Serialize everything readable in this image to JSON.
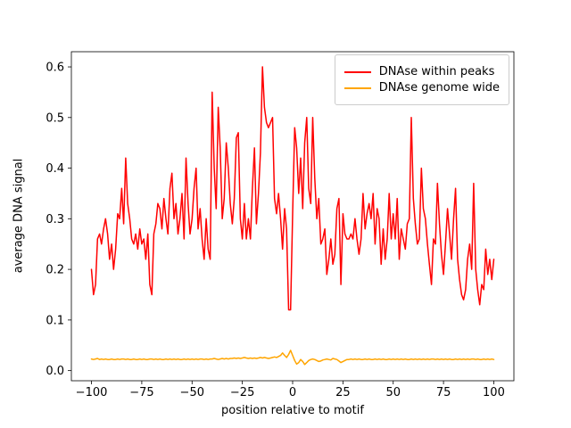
{
  "figure": {
    "background": "#ffffff"
  },
  "chart_data": {
    "type": "line",
    "title": "",
    "xlabel": "position relative to motif",
    "ylabel": "average DNA signal",
    "grid": false,
    "legend_position": "upper right",
    "xlim": [
      -110,
      110
    ],
    "ylim": [
      -0.02,
      0.63
    ],
    "x_ticks": [
      -100,
      -75,
      -50,
      -25,
      0,
      25,
      50,
      75,
      100
    ],
    "x_tick_labels": [
      "−100",
      "−75",
      "−50",
      "−25",
      "0",
      "25",
      "50",
      "75",
      "100"
    ],
    "y_ticks": [
      0.0,
      0.1,
      0.2,
      0.3,
      0.4,
      0.5,
      0.6
    ],
    "y_tick_labels": [
      "0.0",
      "0.1",
      "0.2",
      "0.3",
      "0.4",
      "0.5",
      "0.6"
    ],
    "x": [
      -100,
      -99,
      -98,
      -97,
      -96,
      -95,
      -94,
      -93,
      -92,
      -91,
      -90,
      -89,
      -88,
      -87,
      -86,
      -85,
      -84,
      -83,
      -82,
      -81,
      -80,
      -79,
      -78,
      -77,
      -76,
      -75,
      -74,
      -73,
      -72,
      -71,
      -70,
      -69,
      -68,
      -67,
      -66,
      -65,
      -64,
      -63,
      -62,
      -61,
      -60,
      -59,
      -58,
      -57,
      -56,
      -55,
      -54,
      -53,
      -52,
      -51,
      -50,
      -49,
      -48,
      -47,
      -46,
      -45,
      -44,
      -43,
      -42,
      -41,
      -40,
      -39,
      -38,
      -37,
      -36,
      -35,
      -34,
      -33,
      -32,
      -31,
      -30,
      -29,
      -28,
      -27,
      -26,
      -25,
      -24,
      -23,
      -22,
      -21,
      -20,
      -19,
      -18,
      -17,
      -16,
      -15,
      -14,
      -13,
      -12,
      -11,
      -10,
      -9,
      -8,
      -7,
      -6,
      -5,
      -4,
      -3,
      -2,
      -1,
      0,
      1,
      2,
      3,
      4,
      5,
      6,
      7,
      8,
      9,
      10,
      11,
      12,
      13,
      14,
      15,
      16,
      17,
      18,
      19,
      20,
      21,
      22,
      23,
      24,
      25,
      26,
      27,
      28,
      29,
      30,
      31,
      32,
      33,
      34,
      35,
      36,
      37,
      38,
      39,
      40,
      41,
      42,
      43,
      44,
      45,
      46,
      47,
      48,
      49,
      50,
      51,
      52,
      53,
      54,
      55,
      56,
      57,
      58,
      59,
      60,
      61,
      62,
      63,
      64,
      65,
      66,
      67,
      68,
      69,
      70,
      71,
      72,
      73,
      74,
      75,
      76,
      77,
      78,
      79,
      80,
      81,
      82,
      83,
      84,
      85,
      86,
      87,
      88,
      89,
      90,
      91,
      92,
      93,
      94,
      95,
      96,
      97,
      98,
      99,
      100
    ],
    "series": [
      {
        "name": "DNAse within peaks",
        "color": "#ff0000",
        "values": [
          0.2,
          0.15,
          0.17,
          0.26,
          0.27,
          0.25,
          0.28,
          0.3,
          0.27,
          0.22,
          0.25,
          0.2,
          0.24,
          0.31,
          0.3,
          0.36,
          0.29,
          0.42,
          0.33,
          0.3,
          0.26,
          0.25,
          0.27,
          0.24,
          0.28,
          0.25,
          0.26,
          0.22,
          0.27,
          0.17,
          0.15,
          0.27,
          0.29,
          0.33,
          0.32,
          0.28,
          0.34,
          0.3,
          0.27,
          0.36,
          0.39,
          0.3,
          0.33,
          0.27,
          0.3,
          0.35,
          0.26,
          0.42,
          0.33,
          0.27,
          0.3,
          0.36,
          0.4,
          0.28,
          0.32,
          0.26,
          0.22,
          0.3,
          0.24,
          0.22,
          0.55,
          0.4,
          0.32,
          0.52,
          0.44,
          0.3,
          0.34,
          0.45,
          0.4,
          0.33,
          0.29,
          0.34,
          0.46,
          0.47,
          0.3,
          0.26,
          0.33,
          0.26,
          0.3,
          0.26,
          0.36,
          0.44,
          0.29,
          0.35,
          0.43,
          0.6,
          0.52,
          0.49,
          0.48,
          0.49,
          0.5,
          0.34,
          0.31,
          0.35,
          0.3,
          0.24,
          0.32,
          0.28,
          0.12,
          0.12,
          0.31,
          0.48,
          0.44,
          0.35,
          0.42,
          0.32,
          0.45,
          0.5,
          0.36,
          0.33,
          0.5,
          0.38,
          0.3,
          0.34,
          0.25,
          0.26,
          0.28,
          0.19,
          0.22,
          0.26,
          0.21,
          0.23,
          0.32,
          0.34,
          0.17,
          0.31,
          0.27,
          0.26,
          0.26,
          0.27,
          0.26,
          0.3,
          0.26,
          0.23,
          0.26,
          0.35,
          0.28,
          0.31,
          0.33,
          0.3,
          0.35,
          0.25,
          0.32,
          0.3,
          0.21,
          0.28,
          0.22,
          0.26,
          0.35,
          0.26,
          0.31,
          0.26,
          0.34,
          0.22,
          0.28,
          0.26,
          0.24,
          0.29,
          0.3,
          0.5,
          0.34,
          0.29,
          0.25,
          0.26,
          0.4,
          0.32,
          0.3,
          0.25,
          0.21,
          0.17,
          0.26,
          0.25,
          0.37,
          0.29,
          0.23,
          0.19,
          0.25,
          0.32,
          0.27,
          0.22,
          0.3,
          0.36,
          0.22,
          0.18,
          0.15,
          0.14,
          0.16,
          0.22,
          0.25,
          0.2,
          0.37,
          0.2,
          0.16,
          0.13,
          0.17,
          0.16,
          0.24,
          0.19,
          0.22,
          0.18,
          0.22
        ]
      },
      {
        "name": "DNAse genome wide",
        "color": "#ffa500",
        "values": [
          0.023,
          0.022,
          0.023,
          0.024,
          0.022,
          0.023,
          0.022,
          0.023,
          0.022,
          0.022,
          0.023,
          0.022,
          0.022,
          0.023,
          0.022,
          0.023,
          0.023,
          0.022,
          0.023,
          0.022,
          0.022,
          0.023,
          0.022,
          0.022,
          0.023,
          0.022,
          0.023,
          0.022,
          0.022,
          0.023,
          0.023,
          0.022,
          0.023,
          0.022,
          0.023,
          0.022,
          0.022,
          0.023,
          0.022,
          0.023,
          0.022,
          0.023,
          0.022,
          0.023,
          0.022,
          0.022,
          0.023,
          0.022,
          0.023,
          0.022,
          0.023,
          0.022,
          0.023,
          0.022,
          0.023,
          0.023,
          0.022,
          0.023,
          0.022,
          0.023,
          0.023,
          0.024,
          0.023,
          0.022,
          0.023,
          0.024,
          0.023,
          0.024,
          0.023,
          0.024,
          0.024,
          0.025,
          0.024,
          0.025,
          0.024,
          0.025,
          0.026,
          0.025,
          0.024,
          0.025,
          0.024,
          0.025,
          0.024,
          0.025,
          0.026,
          0.025,
          0.026,
          0.025,
          0.024,
          0.025,
          0.026,
          0.027,
          0.026,
          0.028,
          0.03,
          0.035,
          0.03,
          0.026,
          0.032,
          0.04,
          0.03,
          0.02,
          0.013,
          0.016,
          0.022,
          0.018,
          0.012,
          0.016,
          0.02,
          0.022,
          0.023,
          0.022,
          0.02,
          0.018,
          0.019,
          0.021,
          0.022,
          0.023,
          0.022,
          0.021,
          0.024,
          0.023,
          0.022,
          0.019,
          0.016,
          0.018,
          0.02,
          0.022,
          0.022,
          0.023,
          0.022,
          0.023,
          0.022,
          0.023,
          0.022,
          0.022,
          0.023,
          0.022,
          0.023,
          0.022,
          0.022,
          0.023,
          0.022,
          0.023,
          0.022,
          0.023,
          0.022,
          0.022,
          0.023,
          0.022,
          0.023,
          0.022,
          0.023,
          0.022,
          0.023,
          0.022,
          0.023,
          0.022,
          0.022,
          0.023,
          0.022,
          0.023,
          0.022,
          0.023,
          0.022,
          0.023,
          0.022,
          0.023,
          0.022,
          0.023,
          0.023,
          0.022,
          0.023,
          0.022,
          0.023,
          0.022,
          0.023,
          0.022,
          0.023,
          0.022,
          0.022,
          0.023,
          0.022,
          0.023,
          0.022,
          0.023,
          0.022,
          0.023,
          0.022,
          0.023,
          0.023,
          0.022,
          0.023,
          0.022,
          0.022,
          0.023,
          0.022,
          0.023,
          0.022,
          0.023,
          0.022
        ]
      }
    ]
  }
}
